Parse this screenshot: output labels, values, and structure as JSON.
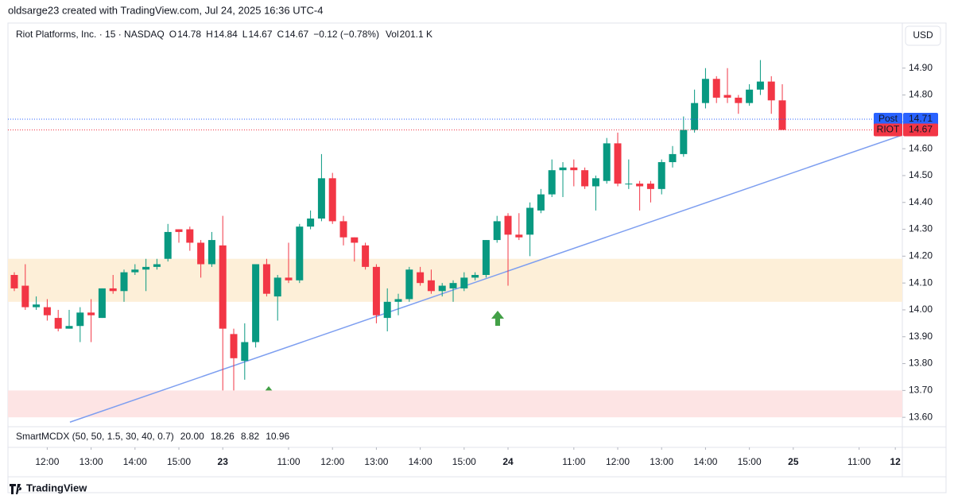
{
  "header": {
    "credit": "oldsarge23 created with TradingView.com, Jul 24, 2025 16:36 UTC-4",
    "symbol": "Riot Platforms, Inc. · 15 · NASDAQ",
    "ohlc": [
      {
        "label": "O",
        "value": "14.78"
      },
      {
        "label": "H",
        "value": "14.84"
      },
      {
        "label": "L",
        "value": "14.67"
      },
      {
        "label": "C",
        "value": "14.67"
      }
    ],
    "change": "−0.12 (−0.78%)",
    "volume_label": "Vol",
    "volume": "201.1 K",
    "currency": "USD"
  },
  "chart_data": {
    "type": "candlestick",
    "up_color": "#089981",
    "down_color": "#f23645",
    "open": [
      14.13,
      14.09,
      14.01,
      14.01,
      13.97,
      13.93,
      13.94,
      13.99,
      13.97,
      14.08,
      14.07,
      14.14,
      14.15,
      14.16,
      14.19,
      14.3,
      14.3,
      14.25,
      14.17,
      14.24,
      13.91,
      13.81,
      13.88,
      14.17,
      14.05,
      14.12,
      14.11,
      14.31,
      14.34,
      14.49,
      14.33,
      14.27,
      14.24,
      14.16,
      13.97,
      14.03,
      14.04,
      14.14,
      14.11,
      14.07,
      14.08,
      14.08,
      14.12,
      14.13,
      14.26,
      14.35,
      14.28,
      14.28,
      14.37,
      14.43,
      14.52,
      14.53,
      14.52,
      14.46,
      14.48,
      14.62,
      14.47,
      14.47,
      14.47,
      14.45,
      14.55,
      14.58,
      14.67,
      14.77,
      14.86,
      14.8,
      14.79,
      14.77,
      14.82,
      14.85,
      14.78
    ],
    "high": [
      14.14,
      14.17,
      14.05,
      14.04,
      14.0,
      14.0,
      14.01,
      14.04,
      14.08,
      14.13,
      14.15,
      14.17,
      14.19,
      14.19,
      14.32,
      14.3,
      14.31,
      14.26,
      14.29,
      14.35,
      13.93,
      13.95,
      14.17,
      14.19,
      14.13,
      14.25,
      14.32,
      14.37,
      14.58,
      14.51,
      14.35,
      14.27,
      14.25,
      14.17,
      14.08,
      14.06,
      14.16,
      14.16,
      14.15,
      14.1,
      14.11,
      14.14,
      14.14,
      14.26,
      14.35,
      14.36,
      14.36,
      14.4,
      14.45,
      14.56,
      14.55,
      14.56,
      14.53,
      14.5,
      14.64,
      14.66,
      14.56,
      14.48,
      14.48,
      14.56,
      14.61,
      14.72,
      14.82,
      14.9,
      14.87,
      14.9,
      14.8,
      14.84,
      14.93,
      14.87,
      14.84
    ],
    "low": [
      14.07,
      14.0,
      14.0,
      13.96,
      13.92,
      13.93,
      13.88,
      13.88,
      13.97,
      14.06,
      14.03,
      14.13,
      14.07,
      14.15,
      14.18,
      14.25,
      14.22,
      14.12,
      14.16,
      13.7,
      13.7,
      13.74,
      13.86,
      14.05,
      13.96,
      14.1,
      14.1,
      14.3,
      14.33,
      14.32,
      14.24,
      14.18,
      14.15,
      13.95,
      13.92,
      13.98,
      14.03,
      14.09,
      14.06,
      14.05,
      14.03,
      14.07,
      14.11,
      14.12,
      14.25,
      14.09,
      14.26,
      14.2,
      14.36,
      14.42,
      14.42,
      14.46,
      14.45,
      14.37,
      14.47,
      14.46,
      14.45,
      14.37,
      14.4,
      14.43,
      14.53,
      14.57,
      14.66,
      14.75,
      14.77,
      14.77,
      14.73,
      14.76,
      14.8,
      14.73,
      14.67
    ],
    "close": [
      14.08,
      14.01,
      14.02,
      13.98,
      13.93,
      13.94,
      13.99,
      13.98,
      14.08,
      14.07,
      14.14,
      14.15,
      14.16,
      14.17,
      14.29,
      14.29,
      14.25,
      14.17,
      14.26,
      13.93,
      13.82,
      13.88,
      14.17,
      14.06,
      14.12,
      14.11,
      14.31,
      14.34,
      14.49,
      14.33,
      14.27,
      14.25,
      14.16,
      13.98,
      14.03,
      14.04,
      14.15,
      14.1,
      14.07,
      14.09,
      14.1,
      14.12,
      14.13,
      14.26,
      14.33,
      14.28,
      14.27,
      14.38,
      14.43,
      14.52,
      14.53,
      14.52,
      14.46,
      14.49,
      14.62,
      14.47,
      14.47,
      14.46,
      14.45,
      14.55,
      14.58,
      14.67,
      14.77,
      14.86,
      14.79,
      14.79,
      14.77,
      14.82,
      14.85,
      14.78,
      14.67
    ],
    "xlim": [
      -0.58,
      80.94
    ],
    "xticks": [
      {
        "value": 3,
        "label": "12:00"
      },
      {
        "value": 7,
        "label": "13:00"
      },
      {
        "value": 11,
        "label": "14:00"
      },
      {
        "value": 15,
        "label": "15:00"
      },
      {
        "value": 19,
        "label": "23"
      },
      {
        "value": 25,
        "label": "11:00"
      },
      {
        "value": 29,
        "label": "12:00"
      },
      {
        "value": 33,
        "label": "13:00"
      },
      {
        "value": 37,
        "label": "14:00"
      },
      {
        "value": 41,
        "label": "15:00"
      },
      {
        "value": 45,
        "label": "24"
      },
      {
        "value": 51,
        "label": "11:00"
      },
      {
        "value": 55,
        "label": "12:00"
      },
      {
        "value": 59,
        "label": "13:00"
      },
      {
        "value": 63,
        "label": "14:00"
      },
      {
        "value": 67,
        "label": "15:00"
      },
      {
        "value": 71,
        "label": "25"
      },
      {
        "value": 77,
        "label": "11:00"
      },
      {
        "value": 80.3,
        "label": "12"
      }
    ],
    "ylim": [
      13.565,
      14.985
    ],
    "yticks": [
      {
        "value": 13.6,
        "label": "13.60"
      },
      {
        "value": 13.7,
        "label": "13.70"
      },
      {
        "value": 13.8,
        "label": "13.80"
      },
      {
        "value": 13.9,
        "label": "13.90"
      },
      {
        "value": 14.0,
        "label": "14.00"
      },
      {
        "value": 14.1,
        "label": "14.10"
      },
      {
        "value": 14.2,
        "label": "14.20"
      },
      {
        "value": 14.3,
        "label": "14.30"
      },
      {
        "value": 14.4,
        "label": "14.40"
      },
      {
        "value": 14.5,
        "label": "14.50"
      },
      {
        "value": 14.6,
        "label": "14.60"
      },
      {
        "value": 14.7,
        "label": "14.70"
      },
      {
        "value": 14.8,
        "label": "14.80"
      },
      {
        "value": 14.9,
        "label": "14.90"
      }
    ],
    "zones": [
      {
        "low": 14.03,
        "high": 14.19,
        "color": "#fdefd8"
      },
      {
        "low": 13.6,
        "high": 13.7,
        "color": "#fde4e4"
      }
    ],
    "trendline": {
      "x": [
        5.07,
        80.94
      ],
      "price": [
        13.582,
        14.651
      ],
      "color": "#7d9ef0"
    },
    "price_lines": [
      {
        "name": "Post",
        "value": 14.71,
        "color": "#2962ff"
      },
      {
        "name": "RIOT",
        "value": 14.67,
        "color": "#f23645"
      }
    ]
  },
  "indicator": {
    "name": "SmartMCDX (50, 50, 1.5, 30, 40, 0.7)",
    "values": [
      {
        "value": "20.00",
        "color": "#089981"
      },
      {
        "value": "18.26",
        "color": "#e8e000"
      },
      {
        "value": "8.82",
        "color": "#f23645"
      },
      {
        "value": "10.96",
        "color": "#2196f3"
      }
    ]
  },
  "footer": {
    "brand": "TradingView"
  }
}
